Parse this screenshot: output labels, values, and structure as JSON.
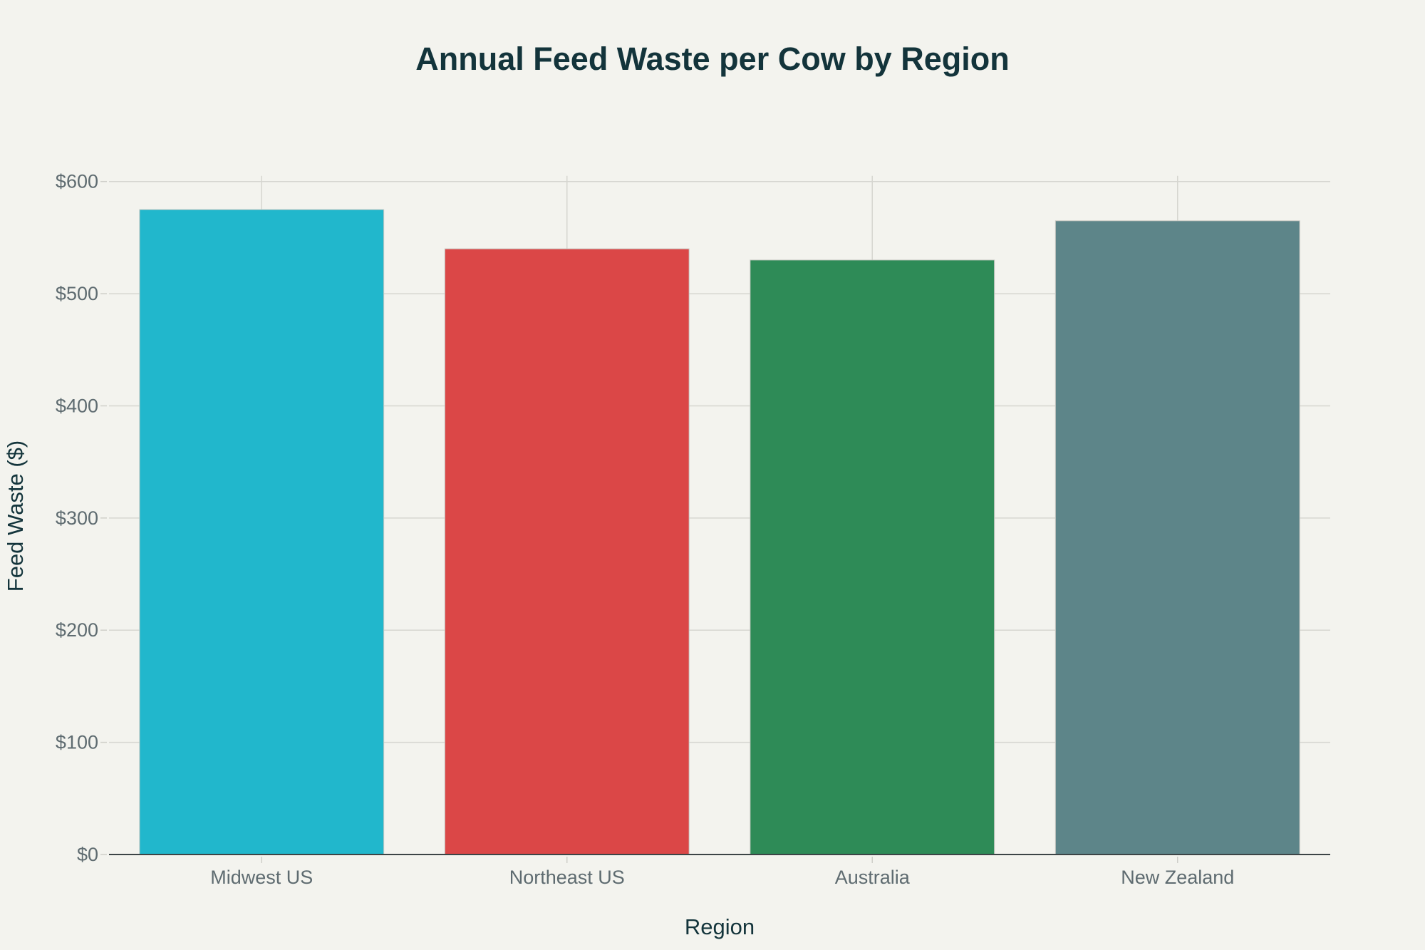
{
  "chart_data": {
    "type": "bar",
    "title": "Annual Feed Waste per Cow by Region",
    "xlabel": "Region",
    "ylabel": "Feed Waste ($)",
    "categories": [
      "Midwest US",
      "Northeast US",
      "Australia",
      "New Zealand"
    ],
    "values": [
      575,
      540,
      530,
      565
    ],
    "colors": [
      "#21B7CC",
      "#DB4747",
      "#2E8B57",
      "#5D8589"
    ],
    "ylim": [
      0,
      600
    ],
    "yticks": [
      0,
      100,
      200,
      300,
      400,
      500,
      600
    ],
    "ytick_labels": [
      "$0",
      "$100",
      "$200",
      "$300",
      "$400",
      "$500",
      "$600"
    ],
    "grid": true,
    "legend": "none"
  }
}
